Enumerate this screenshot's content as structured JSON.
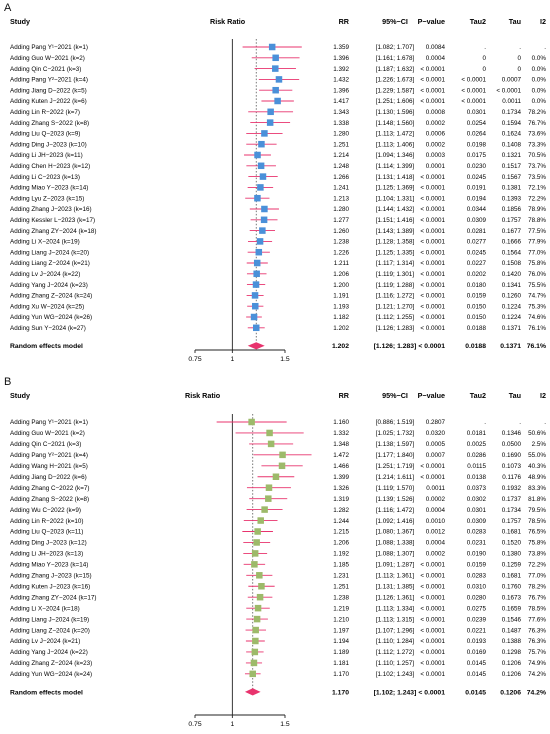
{
  "panels": [
    {
      "letter": "A",
      "headers": {
        "study": "Study",
        "rr_title": "Risk Ratio",
        "rr": "RR",
        "ci": "95%−CI",
        "p": "P−value",
        "tau2": "Tau2",
        "tau": "Tau",
        "i2": "I2"
      },
      "pooled": {
        "label": "Random effects model",
        "rr": "1.202",
        "ci": "[1.126; 1.283]",
        "p": "< 0.0001",
        "tau2": "0.0188",
        "tau": "0.1371",
        "i2": "76.1%"
      },
      "ticks": [
        "0.75",
        "1",
        "1.5"
      ]
    },
    {
      "letter": "B",
      "headers": {
        "study": "Study",
        "rr_title": "Risk Ratio",
        "rr": "RR",
        "ci": "95%−CI",
        "p": "P−value",
        "tau2": "Tau2",
        "tau": "Tau",
        "i2": "I2"
      },
      "pooled": {
        "label": "Random effects model",
        "rr": "1.170",
        "ci": "[1.102; 1.243]",
        "p": "< 0.0001",
        "tau2": "0.0145",
        "tau": "0.1206",
        "i2": "74.2%"
      },
      "ticks": [
        "0.75",
        "1",
        "1.5"
      ]
    }
  ],
  "colors": {
    "panel_a_box": "#4a90d9",
    "panel_b_box": "#9dba6a",
    "ci_line": "#e8336d",
    "diamond": "#e8336d",
    "null_line": "#222222",
    "pooled_dotted": "#555555"
  },
  "chart_data": [
    {
      "type": "forest",
      "panel": "A",
      "xscale": "log",
      "xlim": [
        0.75,
        1.5
      ],
      "null_value": 1,
      "rows": [
        {
          "study": "Adding Pang Y¹−2021 (k=1)",
          "rr": 1.359,
          "lo": 1.082,
          "hi": 1.707,
          "rr_text": "1.359",
          "ci_text": "[1.082; 1.707]",
          "p": "0.0084",
          "tau2": ".",
          "tau": ".",
          "i2": "."
        },
        {
          "study": "Adding Guo W−2021 (k=2)",
          "rr": 1.396,
          "lo": 1.161,
          "hi": 1.678,
          "rr_text": "1.396",
          "ci_text": "[1.161; 1.678]",
          "p": "0.0004",
          "tau2": "0",
          "tau": "0",
          "i2": "0.0%"
        },
        {
          "study": "Adding Qin C−2021 (k=3)",
          "rr": 1.392,
          "lo": 1.187,
          "hi": 1.632,
          "rr_text": "1.392",
          "ci_text": "[1.187; 1.632]",
          "p": "< 0.0001",
          "tau2": "0",
          "tau": "0",
          "i2": "0.0%"
        },
        {
          "study": "Adding Pang Y²−2021 (k=4)",
          "rr": 1.432,
          "lo": 1.226,
          "hi": 1.673,
          "rr_text": "1.432",
          "ci_text": "[1.226; 1.673]",
          "p": "< 0.0001",
          "tau2": "< 0.0001",
          "tau": "0.0007",
          "i2": "0.0%"
        },
        {
          "study": "Adding Jiang D−2022 (k=5)",
          "rr": 1.396,
          "lo": 1.229,
          "hi": 1.587,
          "rr_text": "1.396",
          "ci_text": "[1.229; 1.587]",
          "p": "< 0.0001",
          "tau2": "< 0.0001",
          "tau": "< 0.0001",
          "i2": "0.0%"
        },
        {
          "study": "Adding Kuten J−2022 (k=6)",
          "rr": 1.417,
          "lo": 1.251,
          "hi": 1.606,
          "rr_text": "1.417",
          "ci_text": "[1.251; 1.606]",
          "p": "< 0.0001",
          "tau2": "< 0.0001",
          "tau": "0.0011",
          "i2": "0.0%"
        },
        {
          "study": "Adding Lin R−2022 (k=7)",
          "rr": 1.343,
          "lo": 1.13,
          "hi": 1.596,
          "rr_text": "1.343",
          "ci_text": "[1.130; 1.596]",
          "p": "0.0008",
          "tau2": "0.0301",
          "tau": "0.1734",
          "i2": "78.2%"
        },
        {
          "study": "Adding Zhang S−2022 (k=8)",
          "rr": 1.338,
          "lo": 1.148,
          "hi": 1.56,
          "rr_text": "1.338",
          "ci_text": "[1.148; 1.560]",
          "p": "0.0002",
          "tau2": "0.0254",
          "tau": "0.1594",
          "i2": "76.7%"
        },
        {
          "study": "Adding Liu Q−2023 (k=9)",
          "rr": 1.28,
          "lo": 1.113,
          "hi": 1.472,
          "rr_text": "1.280",
          "ci_text": "[1.113; 1.472]",
          "p": "0.0006",
          "tau2": "0.0264",
          "tau": "0.1624",
          "i2": "73.6%"
        },
        {
          "study": "Adding Ding J−2023 (k=10)",
          "rr": 1.251,
          "lo": 1.113,
          "hi": 1.406,
          "rr_text": "1.251",
          "ci_text": "[1.113; 1.406]",
          "p": "0.0002",
          "tau2": "0.0198",
          "tau": "0.1408",
          "i2": "73.3%"
        },
        {
          "study": "Adding Li JH−2023 (k=11)",
          "rr": 1.214,
          "lo": 1.094,
          "hi": 1.346,
          "rr_text": "1.214",
          "ci_text": "[1.094; 1.346]",
          "p": "0.0003",
          "tau2": "0.0175",
          "tau": "0.1321",
          "i2": "70.5%"
        },
        {
          "study": "Adding Chen H−2023 (k=12)",
          "rr": 1.248,
          "lo": 1.114,
          "hi": 1.399,
          "rr_text": "1.248",
          "ci_text": "[1.114; 1.399]",
          "p": "0.0001",
          "tau2": "0.0230",
          "tau": "0.1517",
          "i2": "73.7%"
        },
        {
          "study": "Adding Li C−2023 (k=13)",
          "rr": 1.266,
          "lo": 1.131,
          "hi": 1.418,
          "rr_text": "1.266",
          "ci_text": "[1.131; 1.418]",
          "p": "< 0.0001",
          "tau2": "0.0245",
          "tau": "0.1567",
          "i2": "73.5%"
        },
        {
          "study": "Adding Miao Y−2023 (k=14)",
          "rr": 1.241,
          "lo": 1.125,
          "hi": 1.369,
          "rr_text": "1.241",
          "ci_text": "[1.125; 1.369]",
          "p": "< 0.0001",
          "tau2": "0.0191",
          "tau": "0.1381",
          "i2": "72.1%"
        },
        {
          "study": "Adding Lyu Z−2023 (k=15)",
          "rr": 1.213,
          "lo": 1.104,
          "hi": 1.331,
          "rr_text": "1.213",
          "ci_text": "[1.104; 1.331]",
          "p": "< 0.0001",
          "tau2": "0.0194",
          "tau": "0.1393",
          "i2": "72.2%"
        },
        {
          "study": "Adding Zhang J−2023 (k=16)",
          "rr": 1.28,
          "lo": 1.144,
          "hi": 1.432,
          "rr_text": "1.280",
          "ci_text": "[1.144; 1.432]",
          "p": "< 0.0001",
          "tau2": "0.0344",
          "tau": "0.1856",
          "i2": "78.9%"
        },
        {
          "study": "Adding Kessler L−2023 (k=17)",
          "rr": 1.277,
          "lo": 1.151,
          "hi": 1.416,
          "rr_text": "1.277",
          "ci_text": "[1.151; 1.416]",
          "p": "< 0.0001",
          "tau2": "0.0309",
          "tau": "0.1757",
          "i2": "78.8%"
        },
        {
          "study": "Adding Zhang ZY−2024 (k=18)",
          "rr": 1.26,
          "lo": 1.143,
          "hi": 1.389,
          "rr_text": "1.260",
          "ci_text": "[1.143; 1.389]",
          "p": "< 0.0001",
          "tau2": "0.0281",
          "tau": "0.1677",
          "i2": "77.5%"
        },
        {
          "study": "Adding Li X−2024 (k=19)",
          "rr": 1.238,
          "lo": 1.128,
          "hi": 1.358,
          "rr_text": "1.238",
          "ci_text": "[1.128; 1.358]",
          "p": "< 0.0001",
          "tau2": "0.0277",
          "tau": "0.1666",
          "i2": "77.9%"
        },
        {
          "study": "Adding Liang J−2024 (k=20)",
          "rr": 1.226,
          "lo": 1.125,
          "hi": 1.335,
          "rr_text": "1.226",
          "ci_text": "[1.125; 1.335]",
          "p": "< 0.0001",
          "tau2": "0.0245",
          "tau": "0.1564",
          "i2": "77.0%"
        },
        {
          "study": "Adding Liang Z−2024 (k=21)",
          "rr": 1.211,
          "lo": 1.117,
          "hi": 1.314,
          "rr_text": "1.211",
          "ci_text": "[1.117; 1.314]",
          "p": "< 0.0001",
          "tau2": "0.0227",
          "tau": "0.1508",
          "i2": "75.8%"
        },
        {
          "study": "Adding Lv J−2024 (k=22)",
          "rr": 1.206,
          "lo": 1.119,
          "hi": 1.301,
          "rr_text": "1.206",
          "ci_text": "[1.119; 1.301]",
          "p": "< 0.0001",
          "tau2": "0.0202",
          "tau": "0.1420",
          "i2": "76.0%"
        },
        {
          "study": "Adding Yang J−2024 (k=23)",
          "rr": 1.2,
          "lo": 1.119,
          "hi": 1.288,
          "rr_text": "1.200",
          "ci_text": "[1.119; 1.288]",
          "p": "< 0.0001",
          "tau2": "0.0180",
          "tau": "0.1341",
          "i2": "75.5%"
        },
        {
          "study": "Adding Zhang Z−2024 (k=24)",
          "rr": 1.191,
          "lo": 1.116,
          "hi": 1.272,
          "rr_text": "1.191",
          "ci_text": "[1.116; 1.272]",
          "p": "< 0.0001",
          "tau2": "0.0159",
          "tau": "0.1260",
          "i2": "74.7%"
        },
        {
          "study": "Adding Xu W−2024 (k=25)",
          "rr": 1.193,
          "lo": 1.121,
          "hi": 1.27,
          "rr_text": "1.193",
          "ci_text": "[1.121; 1.270]",
          "p": "< 0.0001",
          "tau2": "0.0150",
          "tau": "0.1224",
          "i2": "75.3%"
        },
        {
          "study": "Adding Yun WG−2024 (k=26)",
          "rr": 1.182,
          "lo": 1.112,
          "hi": 1.255,
          "rr_text": "1.182",
          "ci_text": "[1.112; 1.255]",
          "p": "< 0.0001",
          "tau2": "0.0150",
          "tau": "0.1224",
          "i2": "74.6%"
        },
        {
          "study": "Adding Sun Y−2024 (k=27)",
          "rr": 1.202,
          "lo": 1.126,
          "hi": 1.283,
          "rr_text": "1.202",
          "ci_text": "[1.126; 1.283]",
          "p": "< 0.0001",
          "tau2": "0.0188",
          "tau": "0.1371",
          "i2": "76.1%"
        }
      ],
      "pooled": {
        "rr": 1.202,
        "lo": 1.126,
        "hi": 1.283
      }
    },
    {
      "type": "forest",
      "panel": "B",
      "xscale": "log",
      "xlim": [
        0.75,
        1.5
      ],
      "null_value": 1,
      "rows": [
        {
          "study": "Adding Pang Y¹−2021 (k=1)",
          "rr": 1.16,
          "lo": 0.886,
          "hi": 1.519,
          "rr_text": "1.160",
          "ci_text": "[0.886; 1.519]",
          "p": "0.2807",
          "tau2": ".",
          "tau": ".",
          "i2": "."
        },
        {
          "study": "Adding Guo W−2021 (k=2)",
          "rr": 1.332,
          "lo": 1.025,
          "hi": 1.732,
          "rr_text": "1.332",
          "ci_text": "[1.025; 1.732]",
          "p": "0.0320",
          "tau2": "0.0181",
          "tau": "0.1346",
          "i2": "50.6%"
        },
        {
          "study": "Adding Qin C−2021 (k=3)",
          "rr": 1.348,
          "lo": 1.138,
          "hi": 1.597,
          "rr_text": "1.348",
          "ci_text": "[1.138; 1.597]",
          "p": "0.0005",
          "tau2": "0.0025",
          "tau": "0.0500",
          "i2": "2.5%"
        },
        {
          "study": "Adding Pang Y²−2021 (k=4)",
          "rr": 1.472,
          "lo": 1.177,
          "hi": 1.84,
          "rr_text": "1.472",
          "ci_text": "[1.177; 1.840]",
          "p": "0.0007",
          "tau2": "0.0286",
          "tau": "0.1690",
          "i2": "55.0%"
        },
        {
          "study": "Adding Wang H−2021 (k=5)",
          "rr": 1.466,
          "lo": 1.251,
          "hi": 1.719,
          "rr_text": "1.466",
          "ci_text": "[1.251; 1.719]",
          "p": "< 0.0001",
          "tau2": "0.0115",
          "tau": "0.1073",
          "i2": "40.3%"
        },
        {
          "study": "Adding Jiang D−2022 (k=6)",
          "rr": 1.399,
          "lo": 1.214,
          "hi": 1.611,
          "rr_text": "1.399",
          "ci_text": "[1.214; 1.611]",
          "p": "< 0.0001",
          "tau2": "0.0138",
          "tau": "0.1176",
          "i2": "48.9%"
        },
        {
          "study": "Adding Zhang C−2022 (k=7)",
          "rr": 1.326,
          "lo": 1.119,
          "hi": 1.57,
          "rr_text": "1.326",
          "ci_text": "[1.119; 1.570]",
          "p": "0.0011",
          "tau2": "0.0373",
          "tau": "0.1932",
          "i2": "83.3%"
        },
        {
          "study": "Adding Zhang S−2022 (k=8)",
          "rr": 1.319,
          "lo": 1.139,
          "hi": 1.526,
          "rr_text": "1.319",
          "ci_text": "[1.139; 1.526]",
          "p": "0.0002",
          "tau2": "0.0302",
          "tau": "0.1737",
          "i2": "81.8%"
        },
        {
          "study": "Adding Wu C−2022 (k=9)",
          "rr": 1.282,
          "lo": 1.116,
          "hi": 1.472,
          "rr_text": "1.282",
          "ci_text": "[1.116; 1.472]",
          "p": "0.0004",
          "tau2": "0.0301",
          "tau": "0.1734",
          "i2": "79.5%"
        },
        {
          "study": "Adding Lin R−2022 (k=10)",
          "rr": 1.244,
          "lo": 1.092,
          "hi": 1.416,
          "rr_text": "1.244",
          "ci_text": "[1.092; 1.416]",
          "p": "0.0010",
          "tau2": "0.0309",
          "tau": "0.1757",
          "i2": "78.5%"
        },
        {
          "study": "Adding Liu Q−2023 (k=11)",
          "rr": 1.215,
          "lo": 1.08,
          "hi": 1.367,
          "rr_text": "1.215",
          "ci_text": "[1.080; 1.367]",
          "p": "0.0012",
          "tau2": "0.0283",
          "tau": "0.1681",
          "i2": "76.5%"
        },
        {
          "study": "Adding Ding J−2023 (k=12)",
          "rr": 1.206,
          "lo": 1.088,
          "hi": 1.338,
          "rr_text": "1.206",
          "ci_text": "[1.088; 1.338]",
          "p": "0.0004",
          "tau2": "0.0231",
          "tau": "0.1520",
          "i2": "75.8%"
        },
        {
          "study": "Adding Li JH−2023 (k=13)",
          "rr": 1.192,
          "lo": 1.088,
          "hi": 1.307,
          "rr_text": "1.192",
          "ci_text": "[1.088; 1.307]",
          "p": "0.0002",
          "tau2": "0.0190",
          "tau": "0.1380",
          "i2": "73.8%"
        },
        {
          "study": "Adding Miao Y−2023 (k=14)",
          "rr": 1.185,
          "lo": 1.091,
          "hi": 1.287,
          "rr_text": "1.185",
          "ci_text": "[1.091; 1.287]",
          "p": "< 0.0001",
          "tau2": "0.0159",
          "tau": "0.1259",
          "i2": "72.2%"
        },
        {
          "study": "Adding Zhang J−2023 (k=15)",
          "rr": 1.231,
          "lo": 1.113,
          "hi": 1.361,
          "rr_text": "1.231",
          "ci_text": "[1.113; 1.361]",
          "p": "< 0.0001",
          "tau2": "0.0283",
          "tau": "0.1681",
          "i2": "77.0%"
        },
        {
          "study": "Adding Kuten J−2023 (k=16)",
          "rr": 1.251,
          "lo": 1.131,
          "hi": 1.385,
          "rr_text": "1.251",
          "ci_text": "[1.131; 1.385]",
          "p": "< 0.0001",
          "tau2": "0.0310",
          "tau": "0.1760",
          "i2": "78.2%"
        },
        {
          "study": "Adding Zhang ZY−2024 (k=17)",
          "rr": 1.238,
          "lo": 1.126,
          "hi": 1.361,
          "rr_text": "1.238",
          "ci_text": "[1.126; 1.361]",
          "p": "< 0.0001",
          "tau2": "0.0280",
          "tau": "0.1673",
          "i2": "76.7%"
        },
        {
          "study": "Adding Li X−2024 (k=18)",
          "rr": 1.219,
          "lo": 1.113,
          "hi": 1.334,
          "rr_text": "1.219",
          "ci_text": "[1.113; 1.334]",
          "p": "< 0.0001",
          "tau2": "0.0275",
          "tau": "0.1659",
          "i2": "78.5%"
        },
        {
          "study": "Adding Liang J−2024 (k=19)",
          "rr": 1.21,
          "lo": 1.113,
          "hi": 1.315,
          "rr_text": "1.210",
          "ci_text": "[1.113; 1.315]",
          "p": "< 0.0001",
          "tau2": "0.0239",
          "tau": "0.1546",
          "i2": "77.6%"
        },
        {
          "study": "Adding Liang Z−2024 (k=20)",
          "rr": 1.197,
          "lo": 1.107,
          "hi": 1.296,
          "rr_text": "1.197",
          "ci_text": "[1.107; 1.296]",
          "p": "< 0.0001",
          "tau2": "0.0221",
          "tau": "0.1487",
          "i2": "76.3%"
        },
        {
          "study": "Adding Lv J−2024 (k=21)",
          "rr": 1.194,
          "lo": 1.11,
          "hi": 1.284,
          "rr_text": "1.194",
          "ci_text": "[1.110; 1.284]",
          "p": "< 0.0001",
          "tau2": "0.0193",
          "tau": "0.1388",
          "i2": "76.3%"
        },
        {
          "study": "Adding Yang J−2024 (k=22)",
          "rr": 1.189,
          "lo": 1.112,
          "hi": 1.272,
          "rr_text": "1.189",
          "ci_text": "[1.112; 1.272]",
          "p": "< 0.0001",
          "tau2": "0.0169",
          "tau": "0.1298",
          "i2": "75.7%"
        },
        {
          "study": "Adding Zhang Z−2024 (k=23)",
          "rr": 1.181,
          "lo": 1.11,
          "hi": 1.257,
          "rr_text": "1.181",
          "ci_text": "[1.110; 1.257]",
          "p": "< 0.0001",
          "tau2": "0.0145",
          "tau": "0.1206",
          "i2": "74.9%"
        },
        {
          "study": "Adding Yun WG−2024 (k=24)",
          "rr": 1.17,
          "lo": 1.102,
          "hi": 1.243,
          "rr_text": "1.170",
          "ci_text": "[1.102; 1.243]",
          "p": "< 0.0001",
          "tau2": "0.0145",
          "tau": "0.1206",
          "i2": "74.2%"
        }
      ],
      "pooled": {
        "rr": 1.17,
        "lo": 1.102,
        "hi": 1.243
      }
    }
  ]
}
